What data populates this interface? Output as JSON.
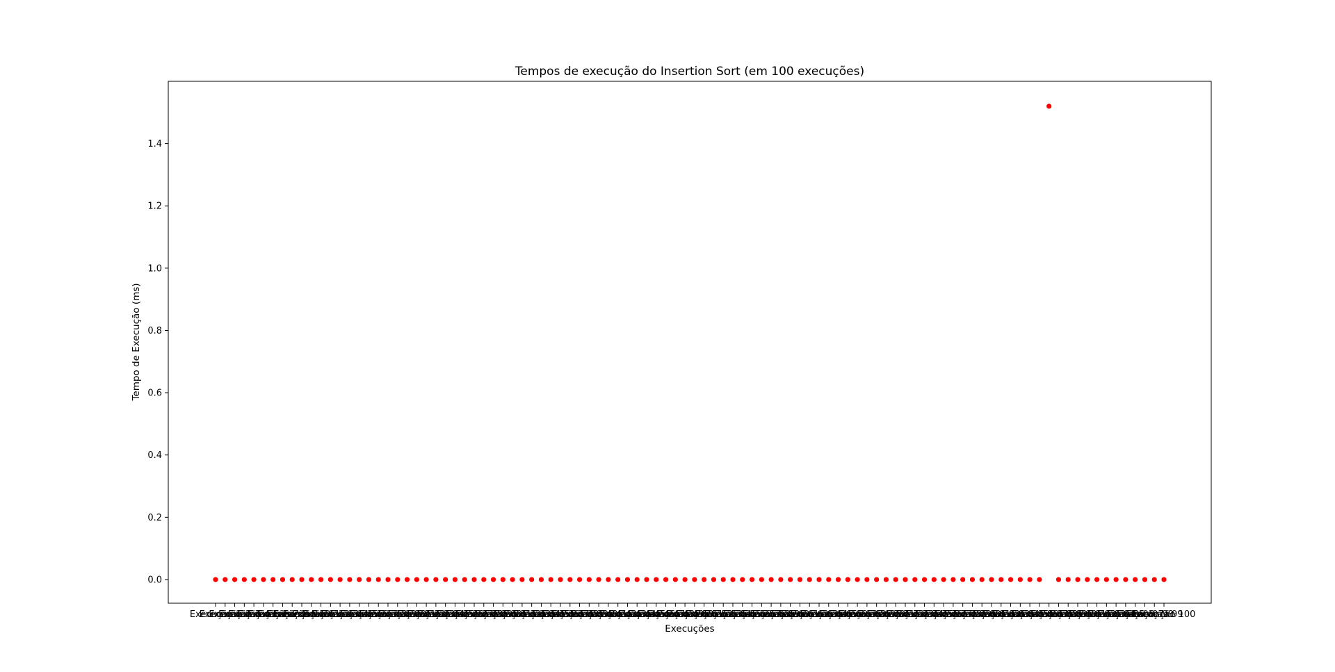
{
  "chart_data": {
    "type": "scatter",
    "title": "Tempos de execução do Insertion Sort (em 100 execuções)",
    "xlabel": "Execuções",
    "ylabel": "Tempo de Execução (ms)",
    "categories": [
      "Execução 1",
      "Execução 2",
      "Execução 3",
      "Execução 4",
      "Execução 5",
      "Execução 6",
      "Execução 7",
      "Execução 8",
      "Execução 9",
      "Execução 10",
      "Execução 11",
      "Execução 12",
      "Execução 13",
      "Execução 14",
      "Execução 15",
      "Execução 16",
      "Execução 17",
      "Execução 18",
      "Execução 19",
      "Execução 20",
      "Execução 21",
      "Execução 22",
      "Execução 23",
      "Execução 24",
      "Execução 25",
      "Execução 26",
      "Execução 27",
      "Execução 28",
      "Execução 29",
      "Execução 30",
      "Execução 31",
      "Execução 32",
      "Execução 33",
      "Execução 34",
      "Execução 35",
      "Execução 36",
      "Execução 37",
      "Execução 38",
      "Execução 39",
      "Execução 40",
      "Execução 41",
      "Execução 42",
      "Execução 43",
      "Execução 44",
      "Execução 45",
      "Execução 46",
      "Execução 47",
      "Execução 48",
      "Execução 49",
      "Execução 50",
      "Execução 51",
      "Execução 52",
      "Execução 53",
      "Execução 54",
      "Execução 55",
      "Execução 56",
      "Execução 57",
      "Execução 58",
      "Execução 59",
      "Execução 60",
      "Execução 61",
      "Execução 62",
      "Execução 63",
      "Execução 64",
      "Execução 65",
      "Execução 66",
      "Execução 67",
      "Execução 68",
      "Execução 69",
      "Execução 70",
      "Execução 71",
      "Execução 72",
      "Execução 73",
      "Execução 74",
      "Execução 75",
      "Execução 76",
      "Execução 77",
      "Execução 78",
      "Execução 79",
      "Execução 80",
      "Execução 81",
      "Execução 82",
      "Execução 83",
      "Execução 84",
      "Execução 85",
      "Execução 86",
      "Execução 87",
      "Execução 88",
      "Execução 89",
      "Execução 90",
      "Execução 91",
      "Execução 92",
      "Execução 93",
      "Execução 94",
      "Execução 95",
      "Execução 96",
      "Execução 97",
      "Execução 98",
      "Execução 99",
      "Execução 100"
    ],
    "values": [
      0,
      0,
      0,
      0,
      0,
      0,
      0,
      0,
      0,
      0,
      0,
      0,
      0,
      0,
      0,
      0,
      0,
      0,
      0,
      0,
      0,
      0,
      0,
      0,
      0,
      0,
      0,
      0,
      0,
      0,
      0,
      0,
      0,
      0,
      0,
      0,
      0,
      0,
      0,
      0,
      0,
      0,
      0,
      0,
      0,
      0,
      0,
      0,
      0,
      0,
      0,
      0,
      0,
      0,
      0,
      0,
      0,
      0,
      0,
      0,
      0,
      0,
      0,
      0,
      0,
      0,
      0,
      0,
      0,
      0,
      0,
      0,
      0,
      0,
      0,
      0,
      0,
      0,
      0,
      0,
      0,
      0,
      0,
      0,
      0,
      0,
      0,
      1.52,
      0,
      0,
      0,
      0,
      0,
      0,
      0,
      0,
      0,
      0,
      0,
      0
    ],
    "ylim": [
      -0.076,
      1.6
    ],
    "yticks": [
      0.0,
      0.2,
      0.4,
      0.6,
      0.8,
      1.0,
      1.2,
      1.4
    ],
    "ytick_labels": [
      "0.0",
      "0.2",
      "0.4",
      "0.6",
      "0.8",
      "1.0",
      "1.2",
      "1.4"
    ],
    "grid": false,
    "marker_color": "#ff0000"
  }
}
